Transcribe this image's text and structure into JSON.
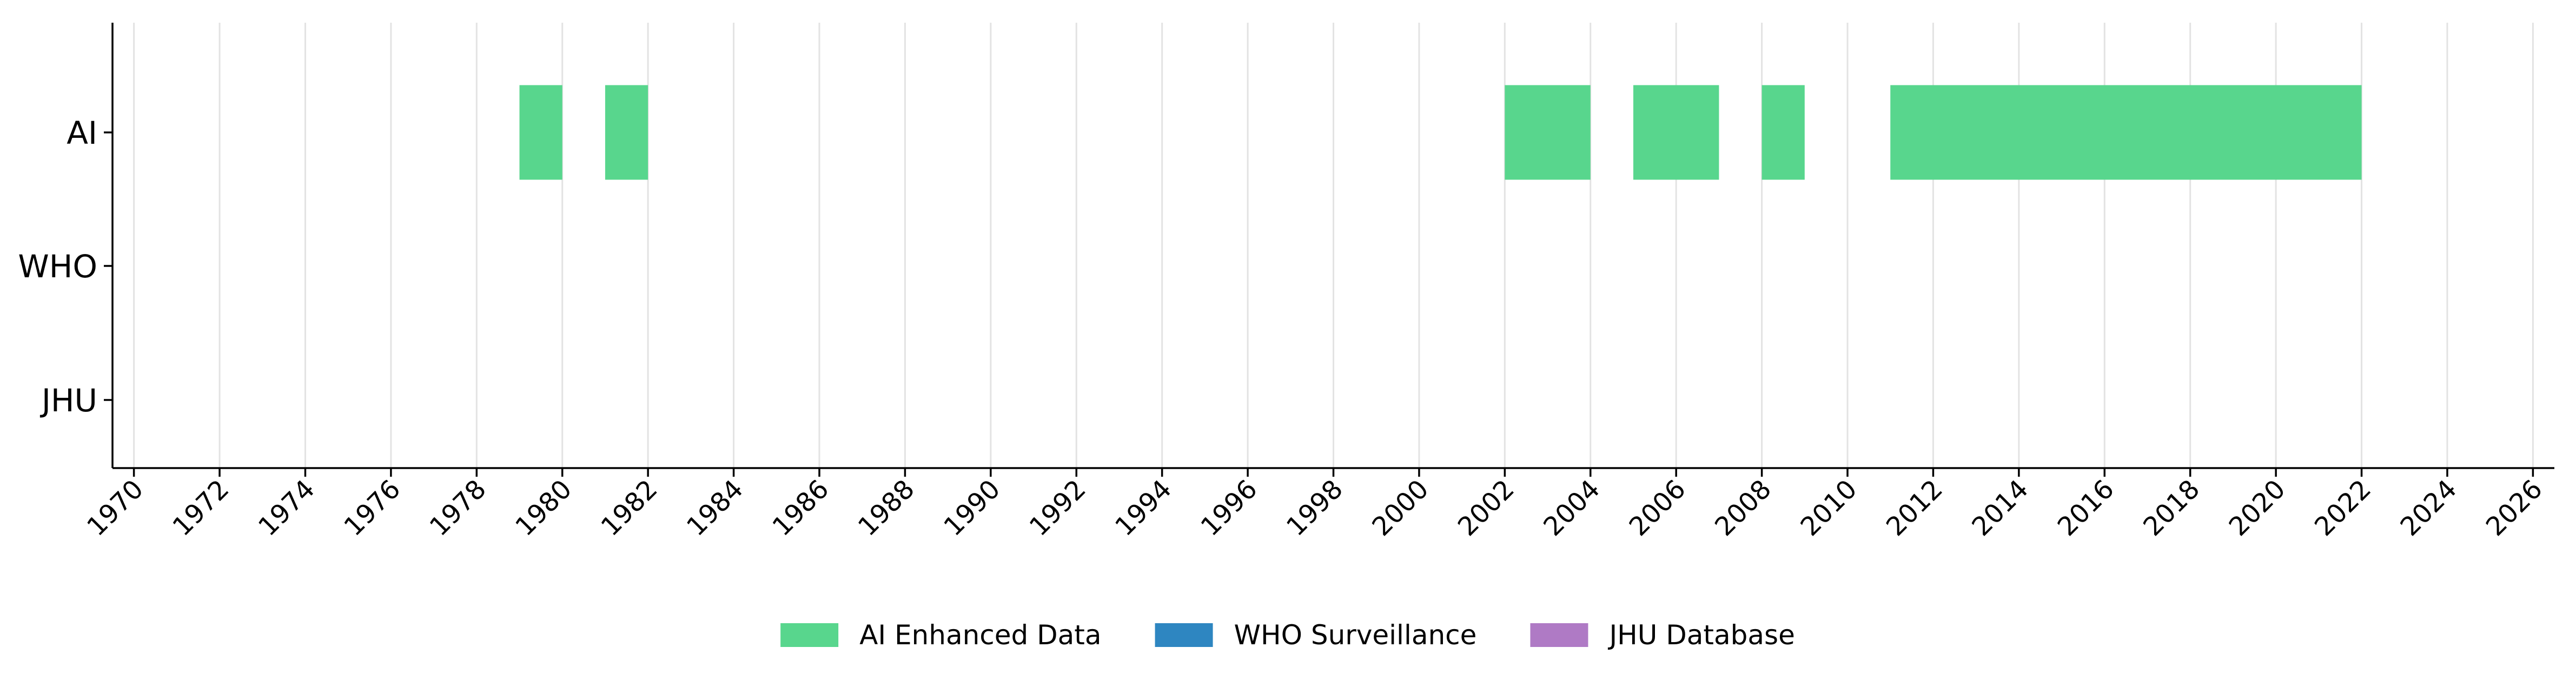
{
  "chart_data": {
    "type": "bar",
    "orientation": "horizontal-timeline",
    "title": "",
    "xlabel": "",
    "ylabel": "",
    "xlim": [
      1969.5,
      2026.5
    ],
    "xticks": [
      1970,
      1972,
      1974,
      1976,
      1978,
      1980,
      1982,
      1984,
      1986,
      1988,
      1990,
      1992,
      1994,
      1996,
      1998,
      2000,
      2002,
      2004,
      2006,
      2008,
      2010,
      2012,
      2014,
      2016,
      2018,
      2020,
      2022,
      2024,
      2026
    ],
    "categories": [
      "AI",
      "WHO",
      "JHU"
    ],
    "grid": "vertical",
    "legend_position": "bottom-center",
    "series": [
      {
        "name": "AI Enhanced Data",
        "category": "AI",
        "color": "#58d68d",
        "intervals": [
          [
            1979,
            1980
          ],
          [
            1981,
            1982
          ],
          [
            2002,
            2004
          ],
          [
            2005,
            2007
          ],
          [
            2008,
            2009
          ],
          [
            2011,
            2022
          ]
        ]
      },
      {
        "name": "WHO Surveillance",
        "category": "WHO",
        "color": "#2e86c1",
        "intervals": []
      },
      {
        "name": "JHU Database",
        "category": "JHU",
        "color": "#af7ac5",
        "intervals": []
      }
    ]
  }
}
